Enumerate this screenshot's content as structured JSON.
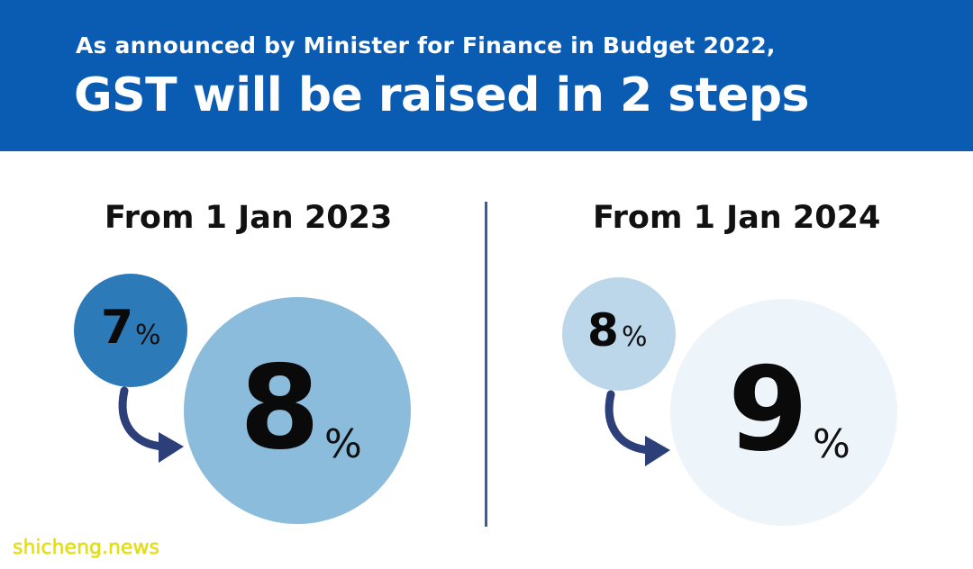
{
  "header": {
    "subtitle": "As announced by Minister for Finance in Budget 2022,",
    "title": "GST will be raised in 2 steps",
    "background_color": "#0a5cb3"
  },
  "steps": [
    {
      "heading": "From 1 Jan 2023",
      "from_value": "7",
      "from_unit": "%",
      "to_value": "8",
      "to_unit": "%",
      "from_color": "#2d7ab9",
      "to_color": "#8cbcdc",
      "arrow_icon": "curved-arrow-icon"
    },
    {
      "heading": "From 1 Jan 2024",
      "from_value": "8",
      "from_unit": "%",
      "to_value": "9",
      "to_unit": "%",
      "from_color": "#bcd6ea",
      "to_color": "#edf5fb",
      "arrow_icon": "curved-arrow-icon"
    }
  ],
  "watermark": "shicheng.news"
}
